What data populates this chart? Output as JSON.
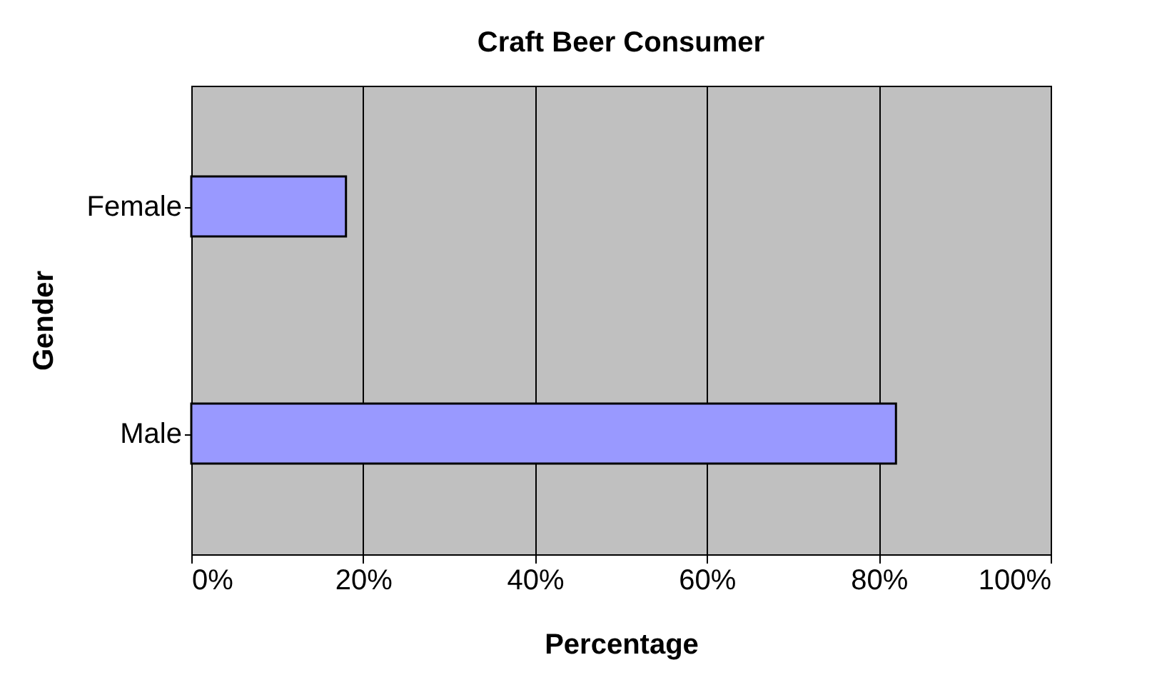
{
  "chart_data": {
    "type": "bar",
    "orientation": "horizontal",
    "title": "Craft Beer Consumer",
    "xlabel": "Percentage",
    "ylabel": "Gender",
    "categories": [
      "Female",
      "Male"
    ],
    "values": [
      18,
      82
    ],
    "color": "#9999ff",
    "xlim": [
      0,
      100
    ],
    "xticks": [
      {
        "value": 0,
        "label": "0%"
      },
      {
        "value": 20,
        "label": "20%"
      },
      {
        "value": 40,
        "label": "40%"
      },
      {
        "value": 60,
        "label": "60%"
      },
      {
        "value": 80,
        "label": "80%"
      },
      {
        "value": 100,
        "label": "100%"
      }
    ],
    "grid": "x"
  }
}
